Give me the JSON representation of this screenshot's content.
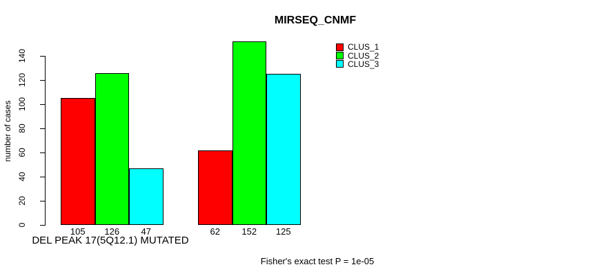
{
  "chart_data": {
    "type": "bar",
    "title": "MIRSEQ_CNMF",
    "ylabel": "number of cases",
    "xlabel": "DEL PEAK 17(5Q12.1) MUTATED",
    "annotation": "Fisher's exact test P = 1e-05",
    "group_count": 2,
    "series": [
      {
        "name": "CLUS_1",
        "color": "#ff0000",
        "values": [
          105,
          62
        ]
      },
      {
        "name": "CLUS_2",
        "color": "#00ff00",
        "values": [
          126,
          152
        ]
      },
      {
        "name": "CLUS_3",
        "color": "#00ffff",
        "values": [
          47,
          125
        ]
      }
    ],
    "yticks": [
      0,
      20,
      40,
      60,
      80,
      100,
      120,
      140
    ],
    "ylim": [
      0,
      155
    ],
    "grid": false,
    "show_bar_value_labels": true,
    "legend_position": "top-right",
    "bar_border_color": "#000000"
  }
}
